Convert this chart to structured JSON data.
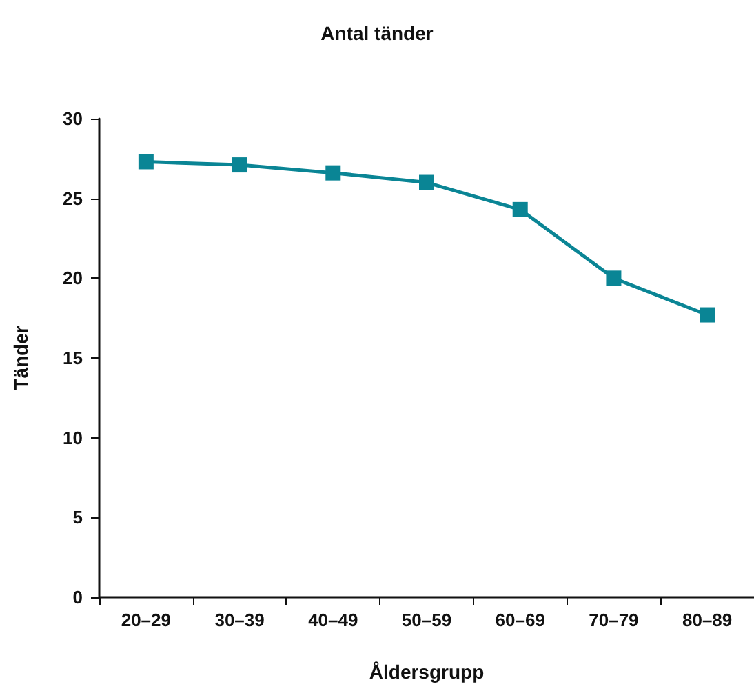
{
  "chart_data": {
    "type": "line",
    "title": "Antal tänder",
    "xlabel": "Åldersgrupp",
    "ylabel": "Tänder",
    "categories": [
      "20–29",
      "30–39",
      "40–49",
      "50–59",
      "60–69",
      "70–79",
      "80–89"
    ],
    "series": [
      {
        "color": "#0a8595",
        "values": [
          27.3,
          27.1,
          26.6,
          26.0,
          24.3,
          20.0,
          17.7
        ]
      }
    ],
    "ylim": [
      0,
      30
    ],
    "yticks": [
      0,
      5,
      10,
      15,
      20,
      25,
      30
    ],
    "grid": false,
    "marker": "square",
    "line_style": "solid"
  }
}
